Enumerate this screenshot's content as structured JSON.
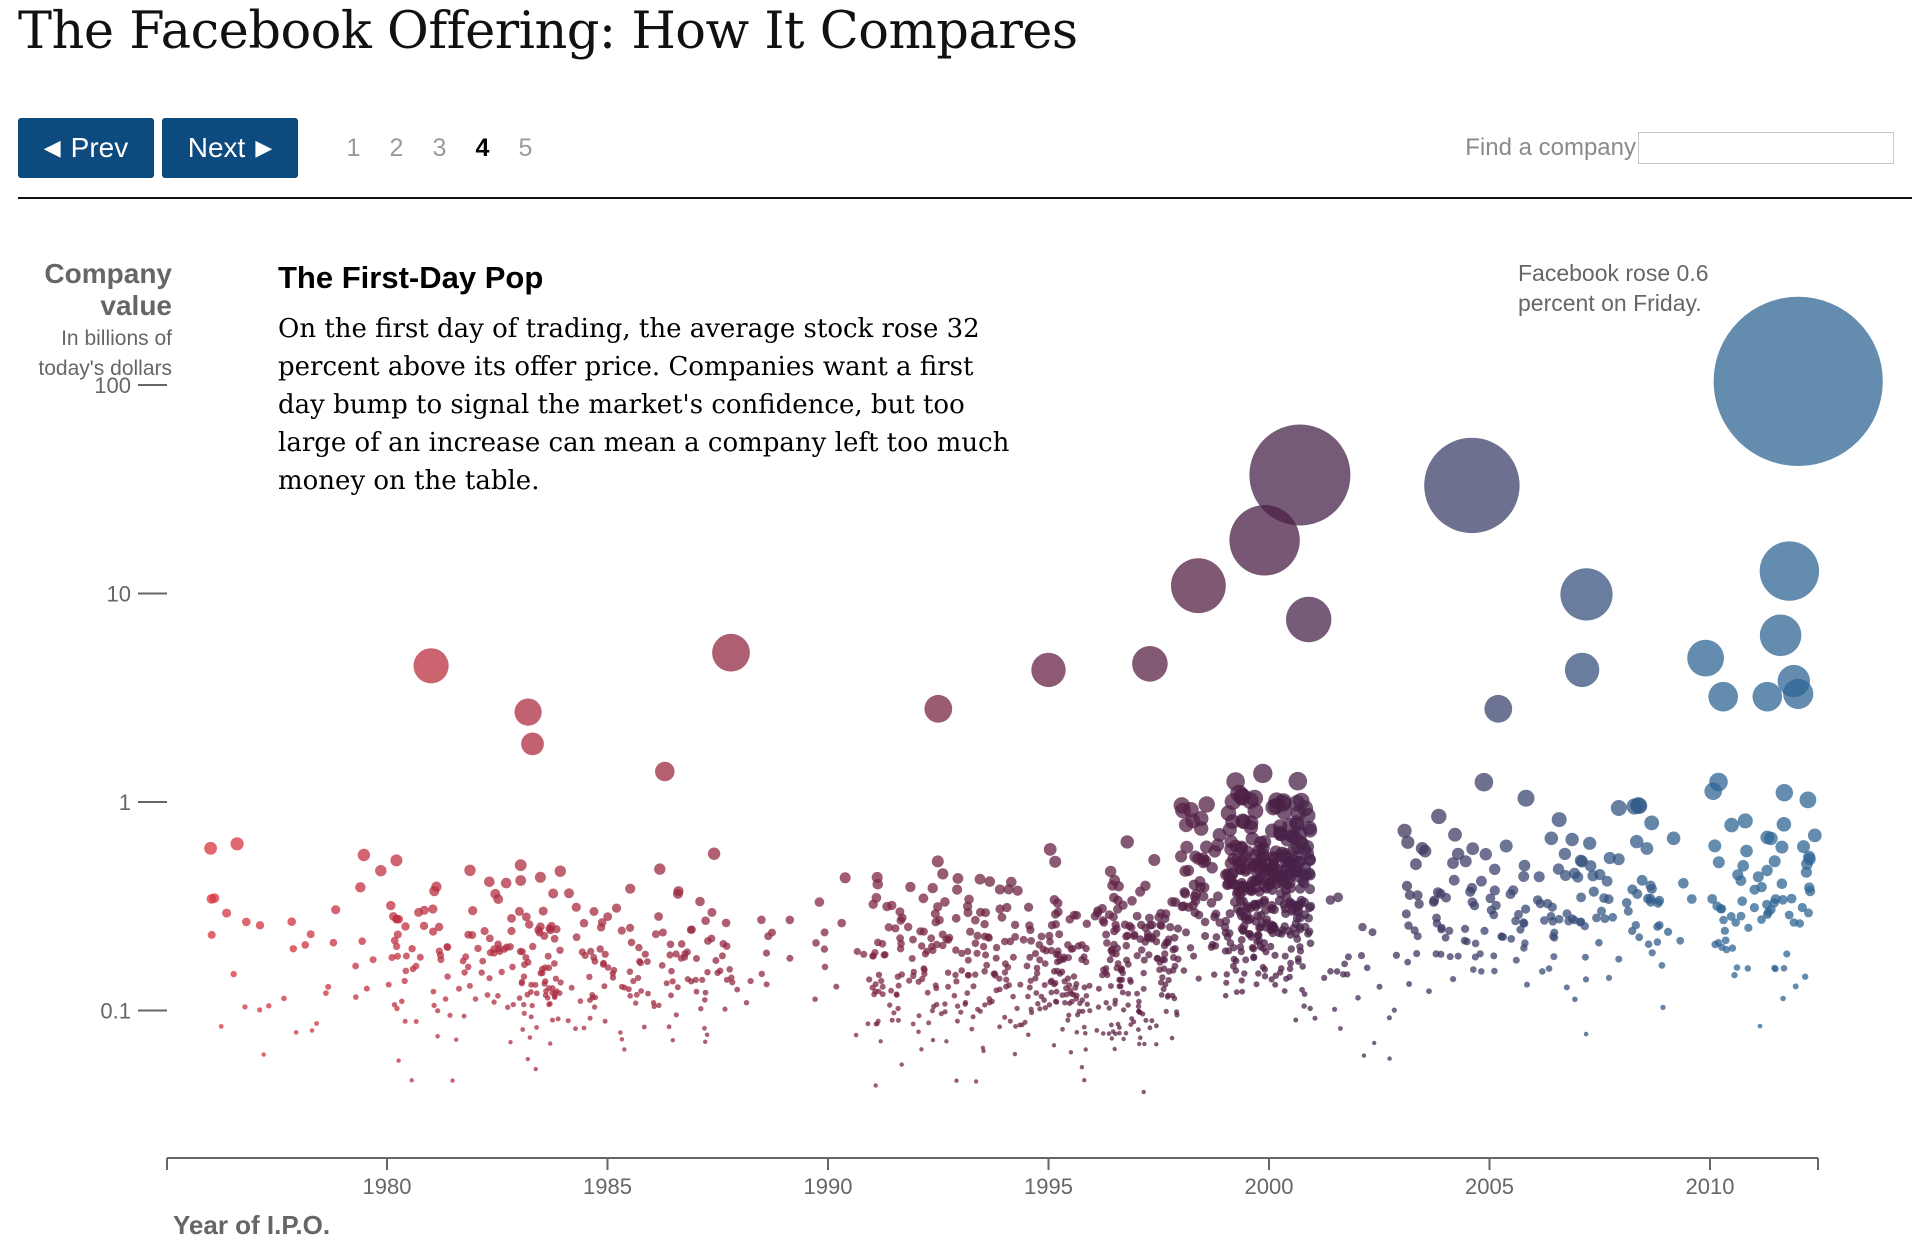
{
  "page": {
    "title": "The Facebook Offering: How It Compares"
  },
  "nav": {
    "prev_label": "Prev",
    "next_label": "Next",
    "prev_arrow_icon": "left-triangle-icon",
    "next_arrow_icon": "right-triangle-icon",
    "pages": [
      "1",
      "2",
      "3",
      "4",
      "5"
    ],
    "active_page": "4",
    "find_label": "Find a company",
    "find_value": ""
  },
  "axis": {
    "y_title": "Company value",
    "y_subtitle_line1": "In billions of",
    "y_subtitle_line2": "today's dollars",
    "x_title": "Year of I.P.O."
  },
  "annotation": {
    "heading": "The First-Day Pop",
    "body": "On the first day of trading, the average stock rose 32 percent above its offer price. Companies want a first day bump to signal the market's confidence, but too large of an increase can mean a company left too much money on the table.",
    "facebook_note": "Facebook rose 0.6 percent on Friday."
  },
  "colors": {
    "nav_button": "#0d4a7d",
    "early_red": "#d9343f",
    "mid_purple": "#4a1f45",
    "late_blue": "#2f6694",
    "axis": "#666666"
  },
  "chart_data": {
    "type": "scatter",
    "x_label": "Year of I.P.O.",
    "y_label": "Company value",
    "y_unit": "In billions of today's dollars",
    "y_scale": "log",
    "x_range": [
      1975,
      2012.5
    ],
    "y_range": [
      0.02,
      180
    ],
    "x_ticks": [
      1980,
      1985,
      1990,
      1995,
      2000,
      2005,
      2010
    ],
    "x_tick_labels": [
      "1980",
      "1985",
      "1990",
      "1995",
      "2000",
      "2005",
      "2010"
    ],
    "y_ticks": [
      0.1,
      1,
      10,
      100
    ],
    "y_tick_labels": [
      "0.1",
      "1",
      "10",
      "100"
    ],
    "size_encoding": "bubble area proportional to company value",
    "color_encoding": "red (earliest IPOs) through purple to blue (latest IPOs)",
    "notable_points": [
      {
        "x": 2012.0,
        "y": 104
      },
      {
        "x": 2000.7,
        "y": 37
      },
      {
        "x": 2004.6,
        "y": 33
      },
      {
        "x": 1999.9,
        "y": 18
      },
      {
        "x": 2011.8,
        "y": 12.8
      },
      {
        "x": 1998.4,
        "y": 10.9
      },
      {
        "x": 2007.2,
        "y": 9.9
      },
      {
        "x": 2000.9,
        "y": 7.5
      },
      {
        "x": 2011.6,
        "y": 6.3
      },
      {
        "x": 1987.8,
        "y": 5.2
      },
      {
        "x": 2009.9,
        "y": 4.9
      },
      {
        "x": 1981.0,
        "y": 4.5
      },
      {
        "x": 1995.0,
        "y": 4.3
      },
      {
        "x": 1997.3,
        "y": 4.6
      },
      {
        "x": 2007.1,
        "y": 4.3
      },
      {
        "x": 2011.9,
        "y": 3.8
      },
      {
        "x": 2010.3,
        "y": 3.2
      },
      {
        "x": 2011.3,
        "y": 3.2
      },
      {
        "x": 2012.0,
        "y": 3.3
      },
      {
        "x": 1992.5,
        "y": 2.8
      },
      {
        "x": 2005.2,
        "y": 2.8
      },
      {
        "x": 1983.2,
        "y": 2.7
      },
      {
        "x": 1983.3,
        "y": 1.9
      },
      {
        "x": 1986.3,
        "y": 1.4
      },
      {
        "x": 1976.0,
        "y": 0.6
      },
      {
        "x": 1976.6,
        "y": 0.63
      }
    ],
    "observations_note": "Several thousand I.P.O.s from 1976 to 2012, densest around 1999-2000, most valued between 0.03 and 3 billion dollars"
  }
}
